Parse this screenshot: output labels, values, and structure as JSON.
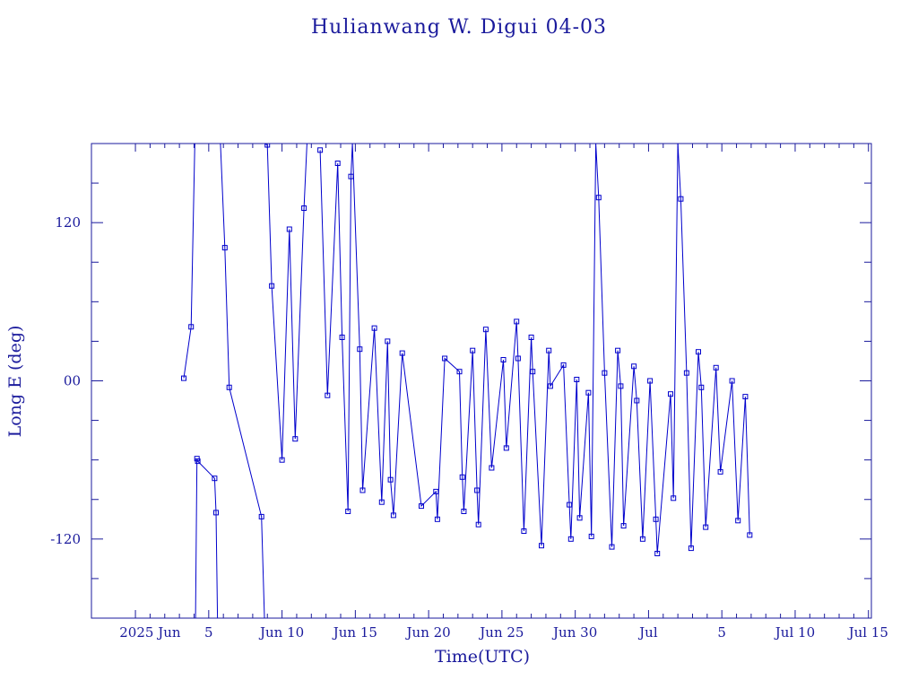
{
  "colors": {
    "axis": "#1a1a9c",
    "series": "#0000cc",
    "background": "#ffffff"
  },
  "chart_data": {
    "type": "line",
    "title": "Hulianwang W. Digui 04-03",
    "xlabel": "Time(UTC)",
    "ylabel": "Long E (deg)",
    "x_unit": "days from 2025 Jun 1 (UTC)",
    "xlim": [
      -4,
      49.2
    ],
    "ylim": [
      -180,
      180
    ],
    "x_tick_labels": [
      {
        "x": 0,
        "label": "2025 Jun"
      },
      {
        "x": 4,
        "label": "5"
      },
      {
        "x": 9,
        "label": "Jun 10"
      },
      {
        "x": 14,
        "label": "Jun 15"
      },
      {
        "x": 19,
        "label": "Jun 20"
      },
      {
        "x": 24,
        "label": "Jun 25"
      },
      {
        "x": 29,
        "label": "Jun 30"
      },
      {
        "x": 34,
        "label": "Jul"
      },
      {
        "x": 39,
        "label": "5"
      },
      {
        "x": 44,
        "label": "Jul 10"
      },
      {
        "x": 49,
        "label": "Jul 15"
      }
    ],
    "y_ticks": [
      {
        "value": 120,
        "label": "120"
      },
      {
        "value": 0,
        "label": "00"
      },
      {
        "value": -120,
        "label": "-120"
      }
    ],
    "grid": false,
    "legend": "none",
    "series": [
      {
        "marker": "square",
        "points": [
          [
            2.3,
            2
          ],
          [
            2.8,
            41
          ],
          [
            3.05,
            180
          ],
          [
            3.1,
            -180
          ],
          [
            3.2,
            -59
          ],
          [
            3.25,
            -61
          ],
          [
            4.4,
            -74
          ],
          [
            4.5,
            -100
          ],
          [
            4.6,
            -180
          ],
          [
            4.8,
            180
          ],
          [
            5.1,
            101
          ],
          [
            5.4,
            -5
          ],
          [
            7.6,
            -103
          ],
          [
            7.8,
            -180
          ],
          [
            7.8,
            180
          ],
          [
            8.0,
            179
          ],
          [
            8.3,
            72
          ],
          [
            9.0,
            -60
          ],
          [
            9.5,
            115
          ],
          [
            9.9,
            -44
          ],
          [
            10.5,
            131
          ],
          [
            10.7,
            180
          ],
          [
            11.4,
            -180
          ],
          [
            11.6,
            175
          ],
          [
            12.1,
            -11
          ],
          [
            12.8,
            165
          ],
          [
            13.1,
            33
          ],
          [
            13.5,
            -99
          ],
          [
            13.7,
            155
          ],
          [
            13.8,
            180
          ],
          [
            14.3,
            24
          ],
          [
            14.5,
            -83
          ],
          [
            15.3,
            40
          ],
          [
            15.8,
            -92
          ],
          [
            16.2,
            30
          ],
          [
            16.4,
            -75
          ],
          [
            16.6,
            -102
          ],
          [
            17.2,
            21
          ],
          [
            18.5,
            -95
          ],
          [
            19.5,
            -84
          ],
          [
            19.6,
            -105
          ],
          [
            20.1,
            17
          ],
          [
            21.1,
            7
          ],
          [
            21.3,
            -73
          ],
          [
            21.4,
            -99
          ],
          [
            22.0,
            23
          ],
          [
            22.3,
            -83
          ],
          [
            22.4,
            -109
          ],
          [
            22.9,
            39
          ],
          [
            23.3,
            -66
          ],
          [
            24.1,
            16
          ],
          [
            24.3,
            -51
          ],
          [
            25.0,
            45
          ],
          [
            25.1,
            17
          ],
          [
            25.5,
            -114
          ],
          [
            26.0,
            33
          ],
          [
            26.1,
            7
          ],
          [
            26.7,
            -125
          ],
          [
            27.2,
            23
          ],
          [
            27.3,
            -4
          ],
          [
            28.2,
            12
          ],
          [
            28.6,
            -94
          ],
          [
            28.7,
            -120
          ],
          [
            29.1,
            1
          ],
          [
            29.3,
            -104
          ],
          [
            29.9,
            -9
          ],
          [
            30.1,
            -118
          ],
          [
            30.4,
            180
          ],
          [
            30.4,
            180
          ],
          [
            30.6,
            139
          ],
          [
            31.0,
            6
          ],
          [
            31.5,
            -126
          ],
          [
            31.9,
            23
          ],
          [
            32.1,
            -4
          ],
          [
            32.3,
            -110
          ],
          [
            33.0,
            11
          ],
          [
            33.2,
            -15
          ],
          [
            33.6,
            -120
          ],
          [
            34.1,
            0
          ],
          [
            34.5,
            -105
          ],
          [
            34.6,
            -131
          ],
          [
            35.5,
            -10
          ],
          [
            35.7,
            -89
          ],
          [
            36.0,
            180
          ],
          [
            36.0,
            180
          ],
          [
            36.2,
            138
          ],
          [
            36.6,
            6
          ],
          [
            36.9,
            -127
          ],
          [
            37.4,
            22
          ],
          [
            37.6,
            -5
          ],
          [
            37.9,
            -111
          ],
          [
            38.6,
            10
          ],
          [
            38.9,
            -69
          ],
          [
            39.7,
            0
          ],
          [
            40.1,
            -106
          ],
          [
            40.6,
            -12
          ],
          [
            40.9,
            -117
          ]
        ]
      }
    ]
  }
}
